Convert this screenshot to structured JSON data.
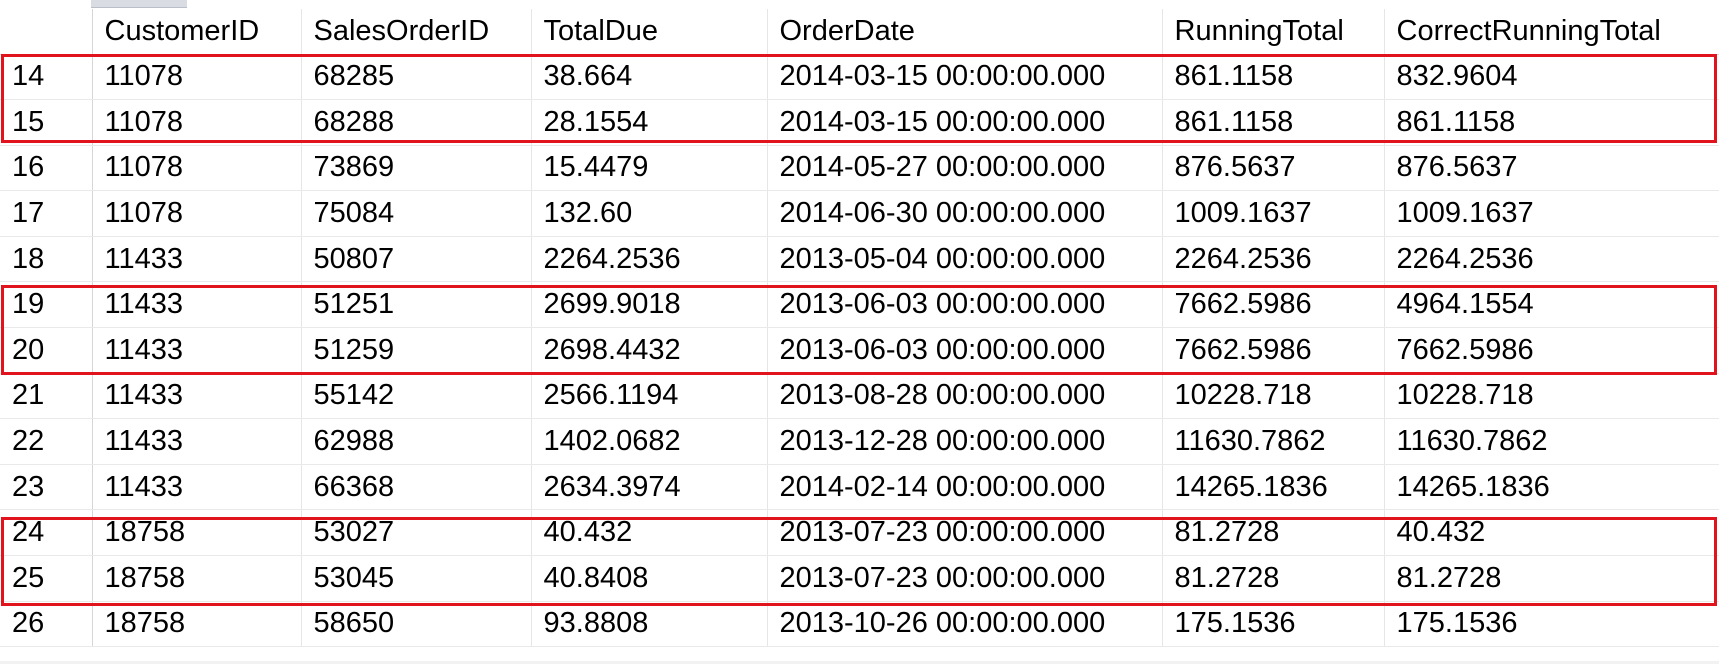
{
  "grid": {
    "columns": [
      "",
      "CustomerID",
      "SalesOrderID",
      "TotalDue",
      "OrderDate",
      "RunningTotal",
      "CorrectRunningTotal"
    ],
    "rows": [
      [
        "14",
        "11078",
        "68285",
        "38.664",
        "2014-03-15 00:00:00.000",
        "861.1158",
        "832.9604"
      ],
      [
        "15",
        "11078",
        "68288",
        "28.1554",
        "2014-03-15 00:00:00.000",
        "861.1158",
        "861.1158"
      ],
      [
        "16",
        "11078",
        "73869",
        "15.4479",
        "2014-05-27 00:00:00.000",
        "876.5637",
        "876.5637"
      ],
      [
        "17",
        "11078",
        "75084",
        "132.60",
        "2014-06-30 00:00:00.000",
        "1009.1637",
        "1009.1637"
      ],
      [
        "18",
        "11433",
        "50807",
        "2264.2536",
        "2013-05-04 00:00:00.000",
        "2264.2536",
        "2264.2536"
      ],
      [
        "19",
        "11433",
        "51251",
        "2699.9018",
        "2013-06-03 00:00:00.000",
        "7662.5986",
        "4964.1554"
      ],
      [
        "20",
        "11433",
        "51259",
        "2698.4432",
        "2013-06-03 00:00:00.000",
        "7662.5986",
        "7662.5986"
      ],
      [
        "21",
        "11433",
        "55142",
        "2566.1194",
        "2013-08-28 00:00:00.000",
        "10228.718",
        "10228.718"
      ],
      [
        "22",
        "11433",
        "62988",
        "1402.0682",
        "2013-12-28 00:00:00.000",
        "11630.7862",
        "11630.7862"
      ],
      [
        "23",
        "11433",
        "66368",
        "2634.3974",
        "2014-02-14 00:00:00.000",
        "14265.1836",
        "14265.1836"
      ],
      [
        "24",
        "18758",
        "53027",
        "40.432",
        "2013-07-23 00:00:00.000",
        "81.2728",
        "40.432"
      ],
      [
        "25",
        "18758",
        "53045",
        "40.8408",
        "2013-07-23 00:00:00.000",
        "81.2728",
        "81.2728"
      ],
      [
        "26",
        "18758",
        "58650",
        "93.8808",
        "2013-10-26 00:00:00.000",
        "175.1536",
        "175.1536"
      ]
    ]
  },
  "highlight_color": "#e1141e",
  "highlighted_row_groups": [
    [
      "14",
      "15"
    ],
    [
      "19",
      "20"
    ],
    [
      "24",
      "25"
    ]
  ]
}
